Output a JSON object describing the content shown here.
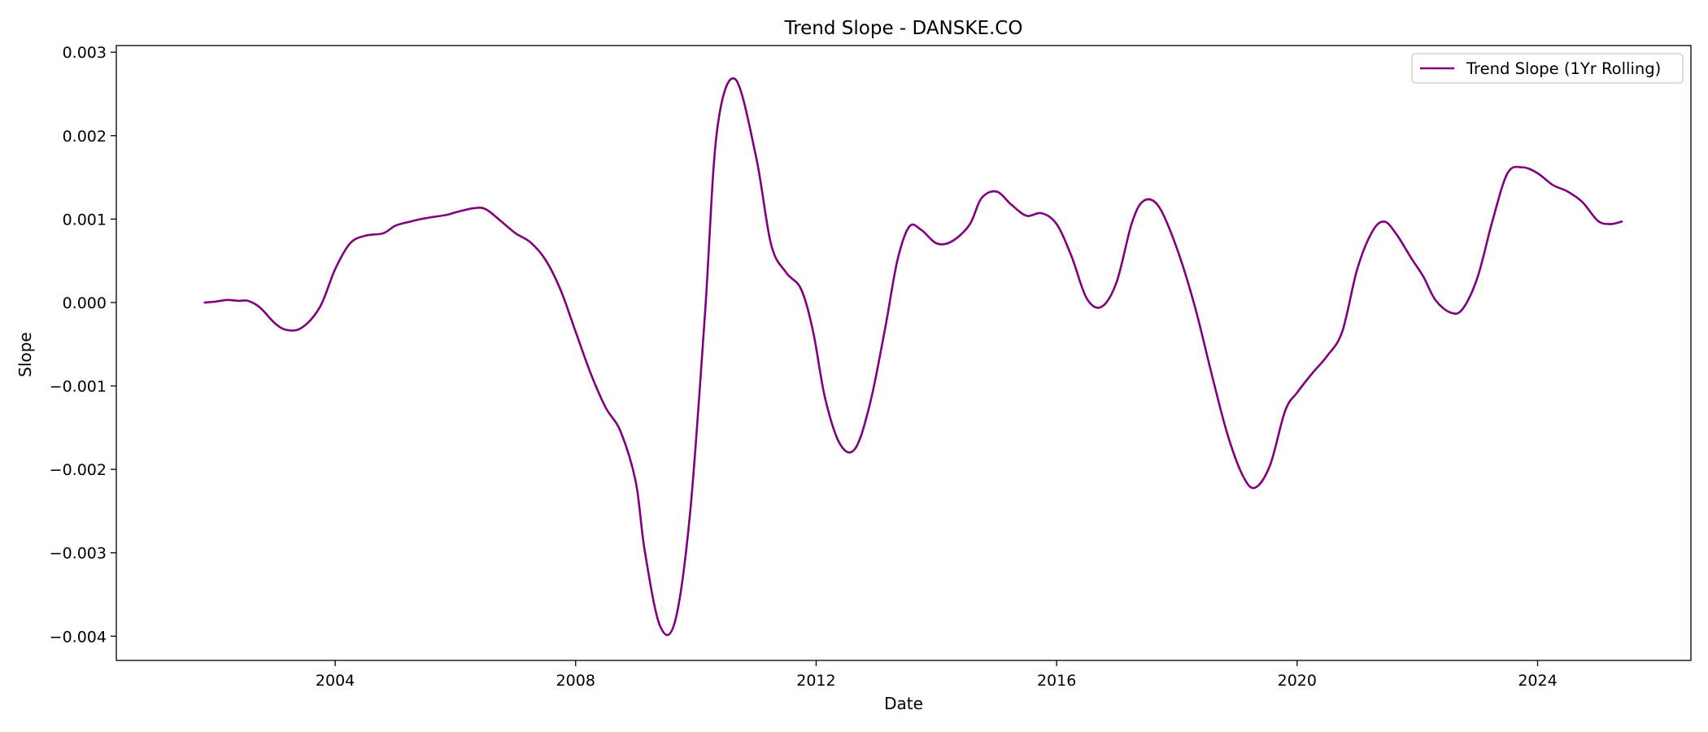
{
  "chart_data": {
    "type": "line",
    "title": "Trend Slope - DANSKE.CO",
    "xlabel": "Date",
    "ylabel": "Slope",
    "xlim": [
      2000.36,
      2026.55
    ],
    "ylim": [
      -0.00429,
      0.00308
    ],
    "grid": false,
    "legend": {
      "position": "top-right",
      "entries": [
        "Trend Slope (1Yr Rolling)"
      ]
    },
    "x_ticks": [
      {
        "value": 2004,
        "label": "2004"
      },
      {
        "value": 2008,
        "label": "2008"
      },
      {
        "value": 2012,
        "label": "2012"
      },
      {
        "value": 2016,
        "label": "2016"
      },
      {
        "value": 2020,
        "label": "2020"
      },
      {
        "value": 2024,
        "label": "2024"
      }
    ],
    "y_ticks": [
      {
        "value": 0.003,
        "label": "0.003"
      },
      {
        "value": 0.002,
        "label": "0.002"
      },
      {
        "value": 0.001,
        "label": "0.001"
      },
      {
        "value": 0.0,
        "label": "0.000"
      },
      {
        "value": -0.001,
        "label": "−0.001"
      },
      {
        "value": -0.002,
        "label": "−0.002"
      },
      {
        "value": -0.003,
        "label": "−0.003"
      },
      {
        "value": -0.004,
        "label": "−0.004"
      }
    ],
    "series": [
      {
        "name": "Trend Slope (1Yr Rolling)",
        "color": "#800080",
        "x": [
          2001.83,
          2002.0,
          2002.2,
          2002.4,
          2002.55,
          2002.75,
          2003.0,
          2003.2,
          2003.45,
          2003.75,
          2004.0,
          2004.25,
          2004.5,
          2004.8,
          2005.0,
          2005.25,
          2005.5,
          2005.85,
          2006.0,
          2006.3,
          2006.5,
          2006.75,
          2007.0,
          2007.25,
          2007.5,
          2007.75,
          2008.0,
          2008.25,
          2008.5,
          2008.75,
          2009.0,
          2009.15,
          2009.4,
          2009.65,
          2009.9,
          2010.15,
          2010.35,
          2010.65,
          2011.0,
          2011.25,
          2011.5,
          2011.75,
          2011.95,
          2012.15,
          2012.4,
          2012.65,
          2012.9,
          2013.15,
          2013.35,
          2013.55,
          2013.75,
          2014.0,
          2014.25,
          2014.55,
          2014.75,
          2015.0,
          2015.25,
          2015.5,
          2015.75,
          2016.0,
          2016.25,
          2016.5,
          2016.75,
          2017.0,
          2017.25,
          2017.45,
          2017.7,
          2018.0,
          2018.3,
          2018.6,
          2018.85,
          2019.1,
          2019.3,
          2019.55,
          2019.8,
          2020.0,
          2020.25,
          2020.5,
          2020.75,
          2021.0,
          2021.25,
          2021.45,
          2021.65,
          2021.9,
          2022.1,
          2022.3,
          2022.55,
          2022.75,
          2023.0,
          2023.25,
          2023.5,
          2023.75,
          2024.0,
          2024.25,
          2024.5,
          2024.75,
          2025.0,
          2025.2,
          2025.4
        ],
        "y": [
          0.0,
          1e-05,
          3e-05,
          2e-05,
          2e-05,
          -6e-05,
          -0.00025,
          -0.00033,
          -0.0003,
          -5e-05,
          0.0004,
          0.00071,
          0.0008,
          0.00083,
          0.00092,
          0.00097,
          0.00101,
          0.00105,
          0.00108,
          0.00113,
          0.00112,
          0.00098,
          0.00083,
          0.00072,
          0.00051,
          0.00015,
          -0.00035,
          -0.00085,
          -0.00126,
          -0.00155,
          -0.00215,
          -0.00298,
          -0.00387,
          -0.00383,
          -0.00255,
          -0.00015,
          0.00205,
          0.00268,
          0.00175,
          0.0007,
          0.00036,
          0.00016,
          -0.00035,
          -0.00115,
          -0.0017,
          -0.00175,
          -0.0012,
          -0.0003,
          0.0005,
          0.00091,
          0.00087,
          0.00071,
          0.00073,
          0.00093,
          0.00125,
          0.00133,
          0.00117,
          0.00104,
          0.00107,
          0.00094,
          0.00055,
          5e-05,
          -5e-05,
          0.00025,
          0.00095,
          0.00122,
          0.00115,
          0.00065,
          -5e-05,
          -0.00092,
          -0.0016,
          -0.00208,
          -0.00222,
          -0.00195,
          -0.0013,
          -0.00108,
          -0.00085,
          -0.00064,
          -0.00035,
          0.0004,
          0.00085,
          0.00097,
          0.00082,
          0.00053,
          0.00031,
          3e-05,
          -0.00012,
          -8e-05,
          0.0003,
          0.00098,
          0.00155,
          0.00162,
          0.00155,
          0.00141,
          0.00133,
          0.0012,
          0.00098,
          0.00094,
          0.00097
        ]
      }
    ]
  }
}
